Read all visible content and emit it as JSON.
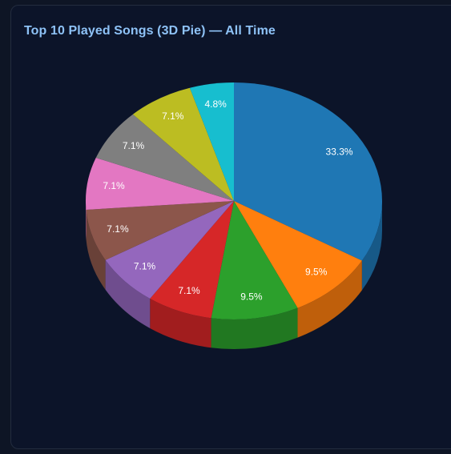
{
  "panel": {
    "title": "Top 10 Played Songs (3D Pie) — All Time"
  },
  "chart_data": {
    "type": "pie",
    "title": "Top 10 Played Songs (3D Pie) — All Time",
    "style": "3d",
    "legend": "none",
    "start_angle": "12 o'clock",
    "direction": "clockwise",
    "slices": [
      {
        "percent": 33.3,
        "label": "33.3%",
        "color": "#1f77b4"
      },
      {
        "percent": 9.5,
        "label": "9.5%",
        "color": "#ff7f0e"
      },
      {
        "percent": 9.5,
        "label": "9.5%",
        "color": "#2ca02c"
      },
      {
        "percent": 7.1,
        "label": "7.1%",
        "color": "#d62728"
      },
      {
        "percent": 7.1,
        "label": "7.1%",
        "color": "#9467bd"
      },
      {
        "percent": 7.1,
        "label": "7.1%",
        "color": "#8c564b"
      },
      {
        "percent": 7.1,
        "label": "7.1%",
        "color": "#e377c2"
      },
      {
        "percent": 7.1,
        "label": "7.1%",
        "color": "#7f7f7f"
      },
      {
        "percent": 7.1,
        "label": "7.1%",
        "color": "#bcbd22"
      },
      {
        "percent": 4.8,
        "label": "4.8%",
        "color": "#17becf"
      }
    ]
  }
}
